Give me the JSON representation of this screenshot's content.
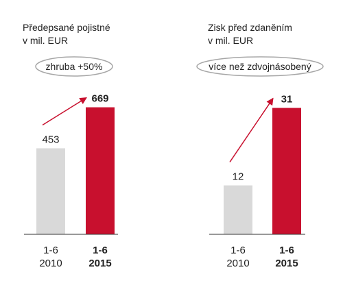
{
  "colors": {
    "baseline_bar": "#d9d9d9",
    "current_bar": "#c8102e",
    "arrow": "#c8102e",
    "axis": "#333333",
    "badge_border": "#a6a6a6"
  },
  "chart_data": [
    {
      "type": "bar",
      "title_line1": "Předepsané pojistné",
      "title_line2": "v mil. EUR",
      "badge": "zhruba +50%",
      "categories": [
        "1-6 2010",
        "1-6 2015"
      ],
      "tick_period": [
        "1-6",
        "1-6"
      ],
      "tick_year": [
        "2010",
        "2015"
      ],
      "values": [
        453,
        669
      ],
      "value_labels": [
        "453",
        "669"
      ],
      "ylim": [
        0,
        700
      ],
      "grid": false,
      "arrow": "from first bar to second bar"
    },
    {
      "type": "bar",
      "title_line1": "Zisk před zdaněním",
      "title_line2": "v mil. EUR",
      "badge": "více než zdvojnásobený",
      "categories": [
        "1-6 2010",
        "1-6 2015"
      ],
      "tick_period": [
        "1-6",
        "1-6"
      ],
      "tick_year": [
        "2010",
        "2015"
      ],
      "values": [
        12,
        31
      ],
      "value_labels": [
        "12",
        "31"
      ],
      "ylim": [
        0,
        32.6
      ],
      "grid": false,
      "arrow": "from first bar to second bar"
    }
  ]
}
